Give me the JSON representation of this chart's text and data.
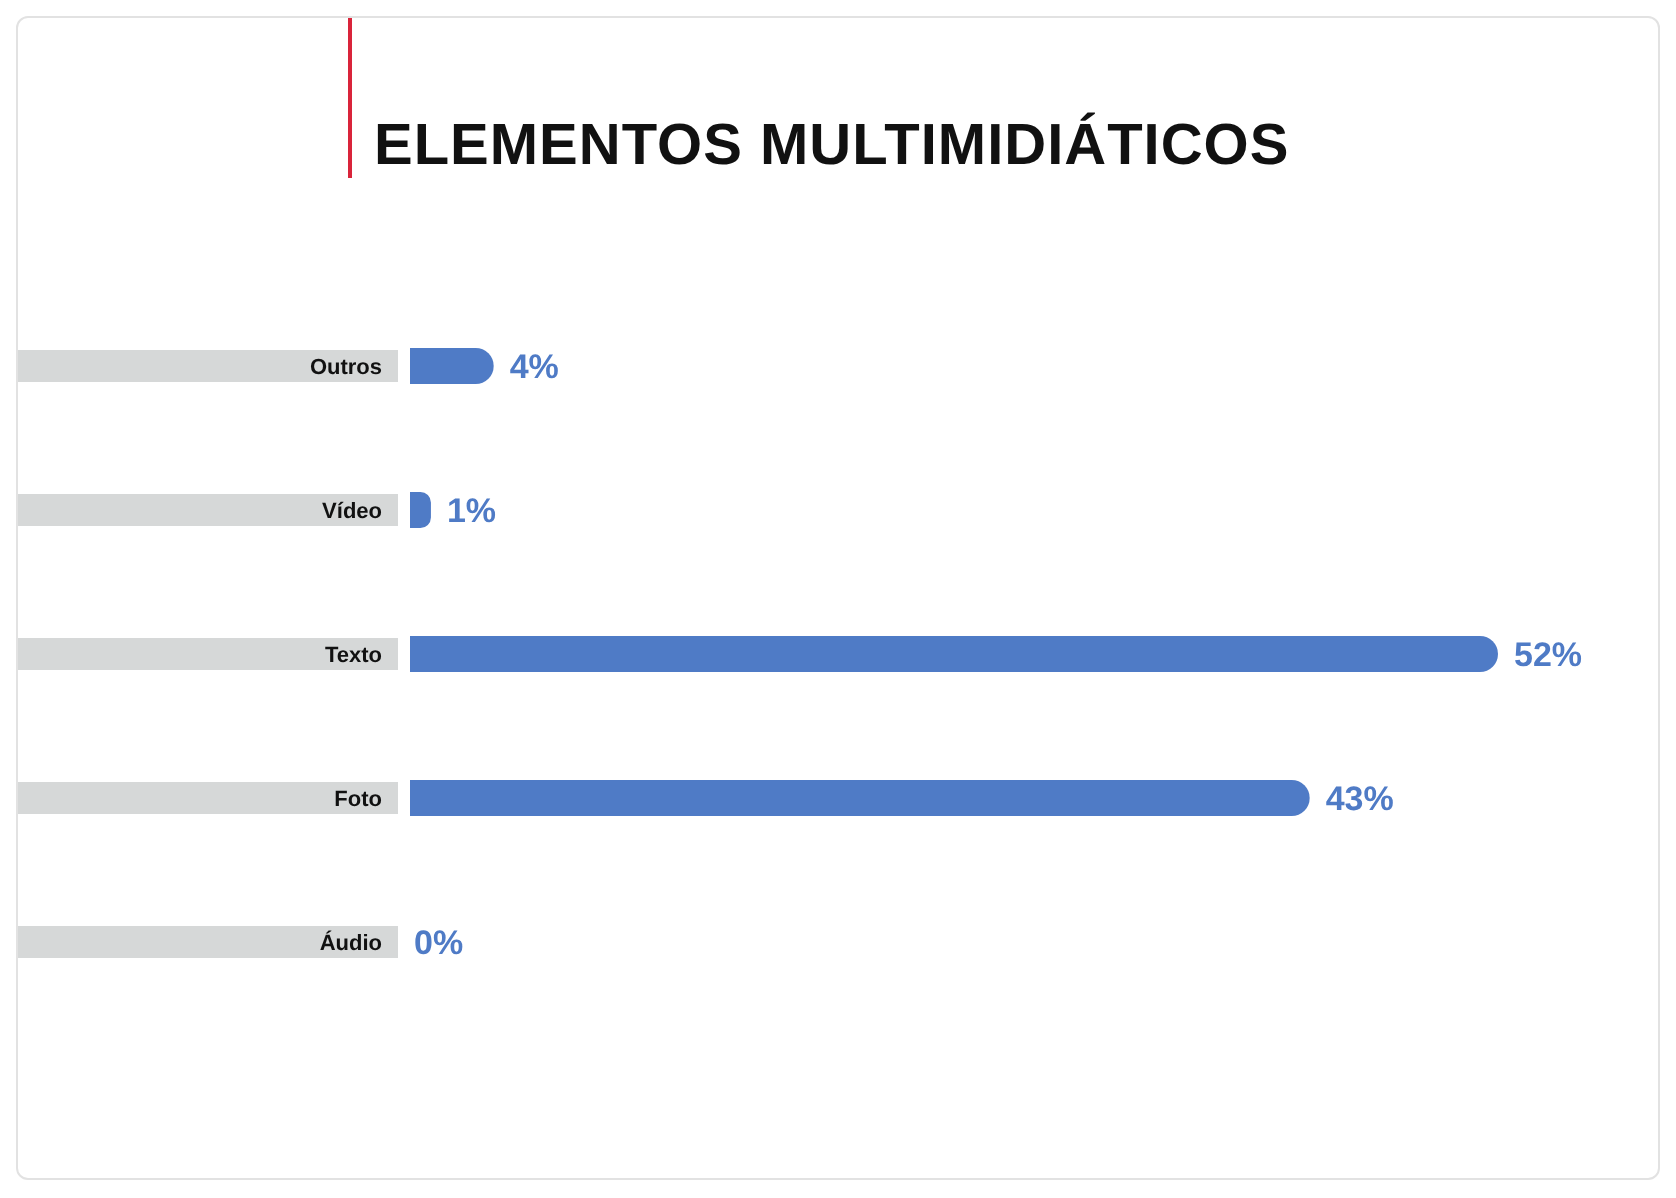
{
  "chart_data": {
    "type": "bar",
    "orientation": "horizontal",
    "title": "ELEMENTOS MULTIMIDIÁTICOS",
    "categories": [
      "Outros",
      "Vídeo",
      "Texto",
      "Foto",
      "Áudio"
    ],
    "values": [
      4,
      1,
      52,
      43,
      0
    ],
    "color": "#4f7bc6",
    "data_labels": true,
    "value_labels": [
      "4%",
      "1%",
      "52%",
      "43%",
      "0%"
    ]
  }
}
